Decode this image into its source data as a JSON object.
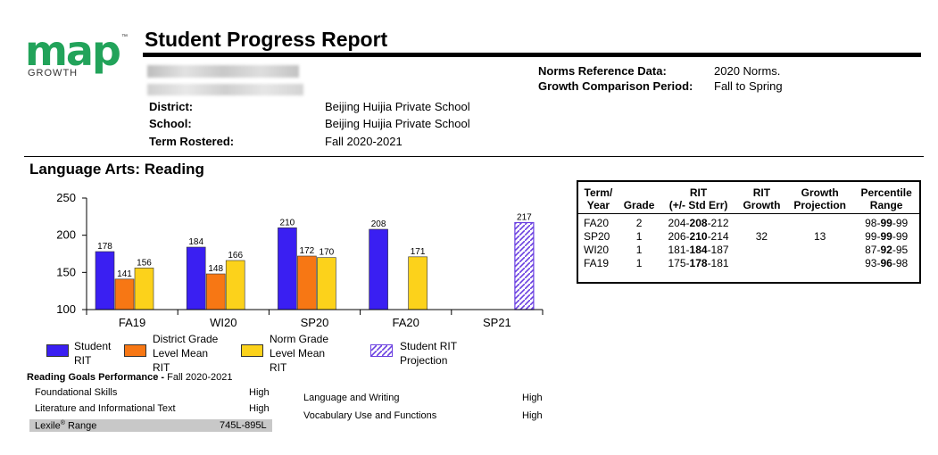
{
  "logo": {
    "wordmark": "map",
    "tm": "™",
    "subtitle": "GROWTH"
  },
  "report_title": "Student Progress Report",
  "student_info": [
    {
      "label": "District:",
      "value": "Beijing Huijia Private School"
    },
    {
      "label": "School:",
      "value": "Beijing Huijia Private School"
    },
    {
      "label": "Term Rostered:",
      "value": "Fall 2020-2021"
    }
  ],
  "norms": [
    {
      "label": "Norms Reference Data:",
      "value": "2020 Norms."
    },
    {
      "label": "Growth Comparison Period:",
      "value": "Fall to Spring"
    }
  ],
  "section_title": "Language Arts: Reading",
  "chart_data": {
    "type": "bar",
    "categories": [
      "FA19",
      "WI20",
      "SP20",
      "FA20",
      "SP21"
    ],
    "ylim": [
      100,
      250
    ],
    "yticks": [
      "100",
      "150",
      "200",
      "250"
    ],
    "series": [
      {
        "name": "Student RIT",
        "color": "#3a1ff2",
        "values": [
          178,
          184,
          210,
          208,
          null
        ]
      },
      {
        "name": "District Grade Level Mean RIT",
        "color": "#f77714",
        "values": [
          141,
          148,
          172,
          null,
          null
        ]
      },
      {
        "name": "Norm Grade Level Mean RIT",
        "color": "#fcd21b",
        "values": [
          156,
          166,
          170,
          171,
          null
        ]
      },
      {
        "name": "Student RIT Projection",
        "color": "#6a3fe0",
        "pattern": "hatched",
        "values": [
          null,
          null,
          null,
          null,
          217
        ]
      }
    ]
  },
  "legend": [
    {
      "label_lines": [
        "Student",
        "RIT"
      ],
      "color": "#3a1ff2"
    },
    {
      "label_lines": [
        "District Grade",
        "Level Mean",
        "RIT"
      ],
      "color": "#f77714"
    },
    {
      "label_lines": [
        "Norm Grade",
        "Level Mean",
        "RIT"
      ],
      "color": "#fcd21b"
    },
    {
      "label_lines": [
        "Student RIT",
        "Projection"
      ],
      "color": "#6a3fe0"
    }
  ],
  "rit_table": {
    "headers": [
      [
        "Term/",
        "Year"
      ],
      [
        "Grade"
      ],
      [
        "RIT",
        "(+/- Std Err)"
      ],
      [
        "RIT",
        "Growth"
      ],
      [
        "Growth",
        "Projection"
      ],
      [
        "Percentile",
        "Range"
      ]
    ],
    "rows": [
      {
        "term": "FA20",
        "grade": "2",
        "rit_lo": "204-",
        "rit_mid": "208",
        "rit_hi": "-212",
        "growth": "",
        "projection": "",
        "pct_lo": "98-",
        "pct_mid": "99",
        "pct_hi": "-99"
      },
      {
        "term": "SP20",
        "grade": "1",
        "rit_lo": "206-",
        "rit_mid": "210",
        "rit_hi": "-214",
        "growth": "32",
        "projection": "13",
        "pct_lo": "99-",
        "pct_mid": "99",
        "pct_hi": "-99"
      },
      {
        "term": "WI20",
        "grade": "1",
        "rit_lo": "181-",
        "rit_mid": "184",
        "rit_hi": "-187",
        "growth": "",
        "projection": "",
        "pct_lo": "87-",
        "pct_mid": "92",
        "pct_hi": "-95"
      },
      {
        "term": "FA19",
        "grade": "1",
        "rit_lo": "175-",
        "rit_mid": "178",
        "rit_hi": "-181",
        "growth": "",
        "projection": "",
        "pct_lo": "93-",
        "pct_mid": "96",
        "pct_hi": "-98"
      }
    ]
  },
  "goals": {
    "title_bold": "Reading Goals Performance - ",
    "title_term": "Fall 2020-2021",
    "left": [
      {
        "name": "Foundational Skills",
        "level": "High"
      },
      {
        "name": "Literature and Informational Text",
        "level": "High"
      }
    ],
    "right": [
      {
        "name": "Language and Writing",
        "level": "High"
      },
      {
        "name": "Vocabulary Use and Functions",
        "level": "High"
      }
    ],
    "lexile_label": "Lexile",
    "lexile_reg": "®",
    "lexile_label_rest": " Range",
    "lexile_value": "745L-895L"
  }
}
